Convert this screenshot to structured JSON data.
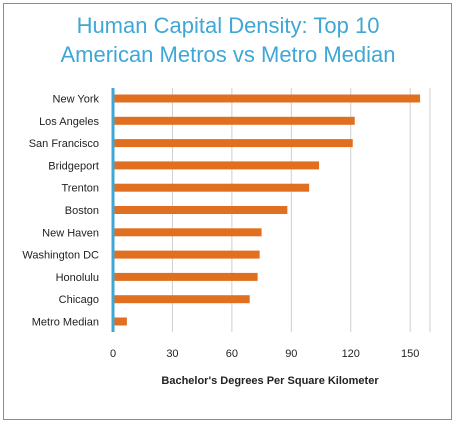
{
  "chart_data": {
    "type": "bar",
    "orientation": "horizontal",
    "title_line1": "Human Capital Density: Top 10",
    "title_line2": "American Metros vs Metro Median",
    "categories": [
      "New York",
      "Los Angeles",
      "San Francisco",
      "Bridgeport",
      "Trenton",
      "Boston",
      "New Haven",
      "Washington DC",
      "Honolulu",
      "Chicago",
      "Metro Median"
    ],
    "values": [
      155,
      122,
      121,
      104,
      99,
      88,
      75,
      74,
      73,
      69,
      7
    ],
    "xlabel": "Bachelor's Degrees Per Square Kilometer",
    "xlim": [
      0,
      160
    ],
    "xticks": [
      "0",
      "30",
      "60",
      "90",
      "120",
      "150"
    ],
    "grid": true,
    "bar_color": "#e07020",
    "axis_color": "#3fa7d6"
  }
}
